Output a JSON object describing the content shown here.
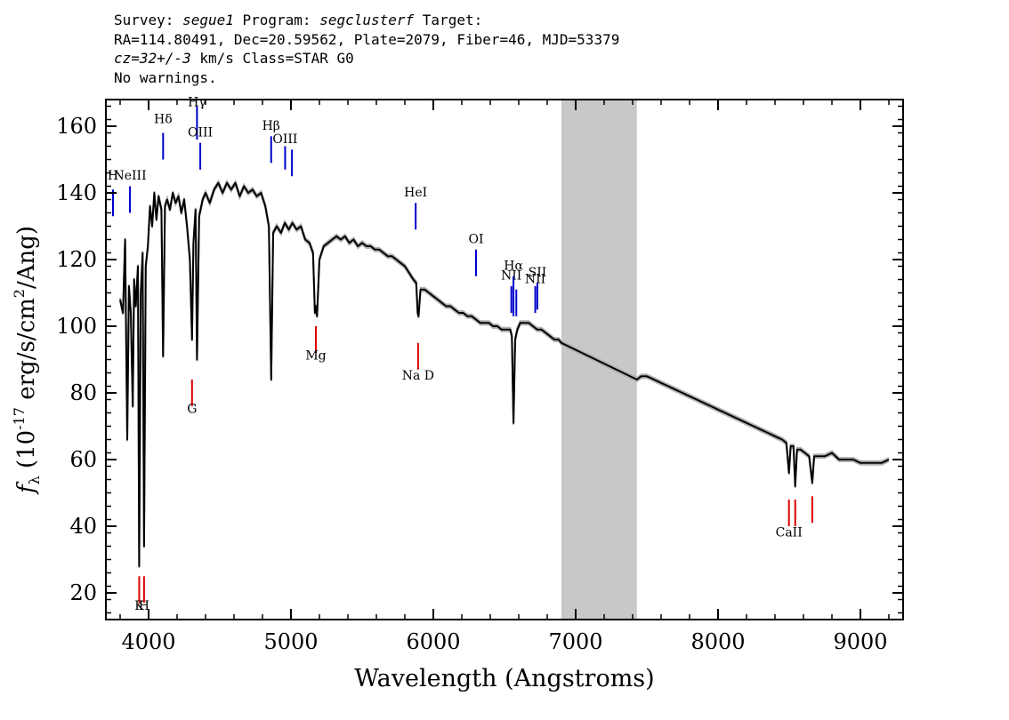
{
  "header": {
    "survey_label": "Survey: ",
    "survey": "segue1",
    "program_label": " Program: ",
    "program": "segclusterf",
    "target_label": " Target:",
    "coords": "RA=114.80491, Dec=20.59562, Plate=2079, Fiber=46, MJD=53379",
    "cz": "cz=32+/-3",
    "cz_rest": " km/s Class=STAR G0",
    "warnings": "No warnings."
  },
  "chart_data": {
    "type": "line",
    "title": "",
    "xlabel": "Wavelength (Angstroms)",
    "ylabel": "f_λ (10^-17 erg/s/cm^2/Ang)",
    "xlim": [
      3700,
      9300
    ],
    "ylim": [
      12,
      168
    ],
    "xticks": [
      4000,
      5000,
      6000,
      7000,
      8000,
      9000
    ],
    "yticks": [
      20,
      40,
      60,
      80,
      100,
      120,
      140,
      160
    ],
    "grid": false,
    "masked_region": [
      6900,
      7430
    ],
    "colors": {
      "spectrum": "#000000",
      "error": "#b0b0b0",
      "emission": "#0000cc",
      "absorption": "#dd0000",
      "mask": "#c8c8c8"
    },
    "series": [
      {
        "values": [
          [
            3800,
            108
          ],
          [
            3820,
            104
          ],
          [
            3835,
            126
          ],
          [
            3850,
            66
          ],
          [
            3862,
            112
          ],
          [
            3875,
            104
          ],
          [
            3889,
            76
          ],
          [
            3898,
            114
          ],
          [
            3910,
            106
          ],
          [
            3925,
            118
          ],
          [
            3934,
            28
          ],
          [
            3945,
            110
          ],
          [
            3958,
            122
          ],
          [
            3968,
            34
          ],
          [
            3980,
            118
          ],
          [
            3995,
            124
          ],
          [
            4010,
            136
          ],
          [
            4025,
            130
          ],
          [
            4040,
            140
          ],
          [
            4055,
            132
          ],
          [
            4070,
            139
          ],
          [
            4090,
            135
          ],
          [
            4102,
            91
          ],
          [
            4115,
            136
          ],
          [
            4130,
            138
          ],
          [
            4150,
            135
          ],
          [
            4170,
            140
          ],
          [
            4190,
            137
          ],
          [
            4210,
            139
          ],
          [
            4230,
            134
          ],
          [
            4250,
            138
          ],
          [
            4270,
            130
          ],
          [
            4290,
            120
          ],
          [
            4305,
            96
          ],
          [
            4315,
            125
          ],
          [
            4330,
            135
          ],
          [
            4340,
            90
          ],
          [
            4355,
            133
          ],
          [
            4380,
            138
          ],
          [
            4400,
            140
          ],
          [
            4430,
            137
          ],
          [
            4460,
            141
          ],
          [
            4490,
            143
          ],
          [
            4520,
            140
          ],
          [
            4550,
            143
          ],
          [
            4580,
            141
          ],
          [
            4610,
            143
          ],
          [
            4640,
            139
          ],
          [
            4670,
            142
          ],
          [
            4700,
            140
          ],
          [
            4730,
            141
          ],
          [
            4760,
            139
          ],
          [
            4790,
            140
          ],
          [
            4820,
            136
          ],
          [
            4845,
            130
          ],
          [
            4861,
            84
          ],
          [
            4875,
            128
          ],
          [
            4900,
            130
          ],
          [
            4930,
            128
          ],
          [
            4957,
            131
          ],
          [
            4985,
            129
          ],
          [
            5010,
            131
          ],
          [
            5040,
            129
          ],
          [
            5070,
            130
          ],
          [
            5100,
            126
          ],
          [
            5130,
            125
          ],
          [
            5155,
            122
          ],
          [
            5168,
            104
          ],
          [
            5175,
            106
          ],
          [
            5183,
            103
          ],
          [
            5200,
            120
          ],
          [
            5230,
            124
          ],
          [
            5260,
            125
          ],
          [
            5290,
            126
          ],
          [
            5320,
            127
          ],
          [
            5350,
            126
          ],
          [
            5380,
            127
          ],
          [
            5410,
            125
          ],
          [
            5440,
            126
          ],
          [
            5470,
            124
          ],
          [
            5500,
            125
          ],
          [
            5530,
            124
          ],
          [
            5560,
            124
          ],
          [
            5590,
            123
          ],
          [
            5620,
            123
          ],
          [
            5650,
            122
          ],
          [
            5680,
            121
          ],
          [
            5710,
            121
          ],
          [
            5740,
            120
          ],
          [
            5770,
            119
          ],
          [
            5800,
            118
          ],
          [
            5830,
            116
          ],
          [
            5860,
            114
          ],
          [
            5880,
            113
          ],
          [
            5890,
            104
          ],
          [
            5896,
            103
          ],
          [
            5910,
            111
          ],
          [
            5940,
            111
          ],
          [
            5970,
            110
          ],
          [
            6000,
            109
          ],
          [
            6030,
            108
          ],
          [
            6060,
            107
          ],
          [
            6090,
            106
          ],
          [
            6120,
            106
          ],
          [
            6150,
            105
          ],
          [
            6180,
            104
          ],
          [
            6210,
            104
          ],
          [
            6240,
            103
          ],
          [
            6270,
            103
          ],
          [
            6300,
            102
          ],
          [
            6330,
            101
          ],
          [
            6360,
            101
          ],
          [
            6390,
            101
          ],
          [
            6420,
            100
          ],
          [
            6450,
            100
          ],
          [
            6480,
            99
          ],
          [
            6510,
            99
          ],
          [
            6540,
            99
          ],
          [
            6552,
            97
          ],
          [
            6563,
            71
          ],
          [
            6575,
            96
          ],
          [
            6590,
            99
          ],
          [
            6610,
            101
          ],
          [
            6640,
            101
          ],
          [
            6670,
            101
          ],
          [
            6700,
            100
          ],
          [
            6730,
            99
          ],
          [
            6760,
            99
          ],
          [
            6790,
            98
          ],
          [
            6820,
            97
          ],
          [
            6850,
            96
          ],
          [
            6880,
            96
          ],
          [
            6900,
            95
          ],
          [
            7430,
            84
          ],
          [
            7460,
            85
          ],
          [
            7500,
            85
          ],
          [
            7550,
            84
          ],
          [
            7600,
            83
          ],
          [
            7650,
            82
          ],
          [
            7700,
            81
          ],
          [
            7750,
            80
          ],
          [
            7800,
            79
          ],
          [
            7850,
            78
          ],
          [
            7900,
            77
          ],
          [
            7950,
            76
          ],
          [
            8000,
            75
          ],
          [
            8050,
            74
          ],
          [
            8100,
            73
          ],
          [
            8150,
            72
          ],
          [
            8200,
            71
          ],
          [
            8250,
            70
          ],
          [
            8300,
            69
          ],
          [
            8350,
            68
          ],
          [
            8400,
            67
          ],
          [
            8450,
            66
          ],
          [
            8480,
            65
          ],
          [
            8498,
            56
          ],
          [
            8510,
            64
          ],
          [
            8530,
            64
          ],
          [
            8542,
            52
          ],
          [
            8555,
            63
          ],
          [
            8580,
            63
          ],
          [
            8610,
            62
          ],
          [
            8640,
            61
          ],
          [
            8662,
            53
          ],
          [
            8675,
            61
          ],
          [
            8700,
            61
          ],
          [
            8750,
            61
          ],
          [
            8800,
            62
          ],
          [
            8850,
            60
          ],
          [
            8900,
            60
          ],
          [
            8950,
            60
          ],
          [
            9000,
            59
          ],
          [
            9050,
            59
          ],
          [
            9100,
            59
          ],
          [
            9150,
            59
          ],
          [
            9200,
            60
          ]
        ]
      }
    ],
    "line_labels": [
      {
        "text": "H",
        "wave": 3750,
        "kind": "emission",
        "tick": [
          141,
          133
        ],
        "label_y": 144
      },
      {
        "text": "NeIII",
        "wave": 3869,
        "kind": "emission",
        "tick": [
          142,
          134
        ],
        "label_y": 144
      },
      {
        "text": "Hδ",
        "wave": 4102,
        "kind": "emission",
        "tick": [
          158,
          150
        ],
        "label_y": 161
      },
      {
        "text": "Hγ",
        "wave": 4340,
        "kind": "emission",
        "tick": [
          166,
          156
        ],
        "label_y": 166
      },
      {
        "text": "OIII",
        "wave": 4363,
        "kind": "emission",
        "tick": [
          155,
          147
        ],
        "label_y": 157
      },
      {
        "text": "Hβ",
        "wave": 4861,
        "kind": "emission",
        "tick": [
          157,
          149
        ],
        "label_y": 159
      },
      {
        "text": "OIII",
        "wave": 4959,
        "kind": "emission",
        "tick": [
          154,
          147
        ],
        "label_y": 155
      },
      {
        "text": "",
        "wave": 5007,
        "kind": "emission",
        "tick": [
          153,
          145
        ],
        "label_y": 0
      },
      {
        "text": "HeI",
        "wave": 5876,
        "kind": "emission",
        "tick": [
          137,
          129
        ],
        "label_y": 139
      },
      {
        "text": "OI",
        "wave": 6300,
        "kind": "emission",
        "tick": [
          123,
          115
        ],
        "label_y": 125
      },
      {
        "text": "NII",
        "wave": 6548,
        "kind": "emission",
        "tick": [
          112,
          104
        ],
        "label_y": 114
      },
      {
        "text": "Hα",
        "wave": 6563,
        "kind": "emission",
        "tick": [
          115,
          103
        ],
        "label_y": 117
      },
      {
        "text": "",
        "wave": 6583,
        "kind": "emission",
        "tick": [
          111,
          103
        ],
        "label_y": 0
      },
      {
        "text": "NII",
        "wave": 6716,
        "kind": "emission",
        "tick": [
          112,
          104
        ],
        "label_y": 113
      },
      {
        "text": "SII",
        "wave": 6731,
        "kind": "emission",
        "tick": [
          113,
          105
        ],
        "label_y": 115
      },
      {
        "text": "Mg",
        "wave": 5175,
        "kind": "absorption",
        "tick": [
          100,
          92
        ],
        "label_y": 90
      },
      {
        "text": "G",
        "wave": 4305,
        "kind": "absorption",
        "tick": [
          84,
          76
        ],
        "label_y": 74
      },
      {
        "text": "Na D",
        "wave": 5893,
        "kind": "absorption",
        "tick": [
          95,
          87
        ],
        "label_y": 84
      },
      {
        "text": "K",
        "wave": 3934,
        "kind": "absorption",
        "tick": [
          25,
          17
        ],
        "label_y": 15
      },
      {
        "text": "H",
        "wave": 3968,
        "kind": "absorption",
        "tick": [
          25,
          17
        ],
        "label_y": 15
      },
      {
        "text": "CaII",
        "wave": 8498,
        "kind": "absorption",
        "tick": [
          48,
          40
        ],
        "label_y": 37
      },
      {
        "text": "",
        "wave": 8542,
        "kind": "absorption",
        "tick": [
          48,
          40
        ],
        "label_y": 0
      },
      {
        "text": "",
        "wave": 8662,
        "kind": "absorption",
        "tick": [
          49,
          41
        ],
        "label_y": 0
      }
    ]
  }
}
